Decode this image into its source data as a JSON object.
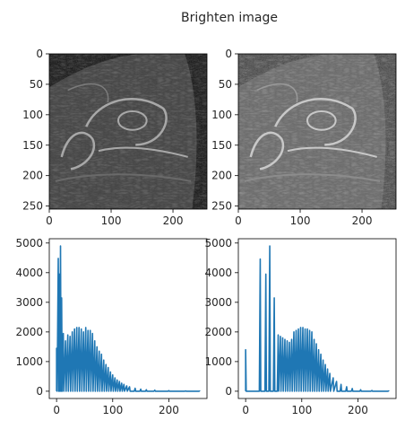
{
  "chart_data": [
    {
      "type": "image",
      "title": "Brighten image",
      "image_content": "grayscale MRI slice of an ankle (original)",
      "xticks": [
        0,
        100,
        200
      ],
      "yticks": [
        0,
        50,
        100,
        150,
        200,
        250
      ],
      "xlim": [
        0,
        255
      ],
      "ylim": [
        255,
        0
      ],
      "colormap": "gray"
    },
    {
      "type": "image",
      "image_content": "grayscale MRI slice of an ankle (brightened)",
      "xticks": [
        0,
        100,
        200
      ],
      "yticks": [
        0,
        50,
        100,
        150,
        200,
        250
      ],
      "xlim": [
        0,
        255
      ],
      "ylim": [
        255,
        0
      ],
      "colormap": "gray"
    },
    {
      "type": "line",
      "series_color": "#1f77b4",
      "xticks": [
        0,
        100,
        200
      ],
      "yticks": [
        0,
        1000,
        2000,
        3000,
        4000,
        5000
      ],
      "xlim": [
        -13,
        268
      ],
      "ylim": [
        -245,
        5145
      ],
      "peaks": [
        [
          0,
          1450
        ],
        [
          3,
          4480
        ],
        [
          5,
          3950
        ],
        [
          7,
          4900
        ],
        [
          9,
          3150
        ],
        [
          12,
          1950
        ],
        [
          16,
          1700
        ],
        [
          20,
          1900
        ],
        [
          24,
          1850
        ],
        [
          28,
          2000
        ],
        [
          32,
          2100
        ],
        [
          36,
          2150
        ],
        [
          40,
          2150
        ],
        [
          44,
          2100
        ],
        [
          48,
          2000
        ],
        [
          52,
          2150
        ],
        [
          56,
          2050
        ],
        [
          60,
          2050
        ],
        [
          64,
          1950
        ],
        [
          68,
          1700
        ],
        [
          72,
          1500
        ],
        [
          76,
          1350
        ],
        [
          80,
          1250
        ],
        [
          84,
          1050
        ],
        [
          88,
          900
        ],
        [
          92,
          800
        ],
        [
          96,
          650
        ],
        [
          100,
          550
        ],
        [
          104,
          450
        ],
        [
          108,
          380
        ],
        [
          112,
          330
        ],
        [
          116,
          270
        ],
        [
          120,
          230
        ],
        [
          125,
          180
        ],
        [
          130,
          150
        ],
        [
          140,
          100
        ],
        [
          150,
          70
        ],
        [
          160,
          50
        ],
        [
          175,
          35
        ],
        [
          200,
          20
        ],
        [
          230,
          10
        ],
        [
          255,
          5
        ]
      ]
    },
    {
      "type": "line",
      "series_color": "#1f77b4",
      "xticks": [
        0,
        100,
        200
      ],
      "yticks": [
        0,
        1000,
        2000,
        3000,
        4000,
        5000
      ],
      "xlim": [
        -13,
        268
      ],
      "ylim": [
        -245,
        5145
      ],
      "peaks": [
        [
          0,
          1400
        ],
        [
          26,
          4460
        ],
        [
          36,
          3950
        ],
        [
          43,
          4900
        ],
        [
          51,
          3150
        ],
        [
          58,
          1900
        ],
        [
          62,
          1850
        ],
        [
          66,
          1800
        ],
        [
          70,
          1750
        ],
        [
          74,
          1700
        ],
        [
          78,
          1650
        ],
        [
          82,
          1750
        ],
        [
          86,
          2000
        ],
        [
          90,
          2050
        ],
        [
          94,
          2100
        ],
        [
          98,
          2150
        ],
        [
          102,
          2150
        ],
        [
          106,
          2100
        ],
        [
          110,
          2100
        ],
        [
          114,
          2050
        ],
        [
          118,
          2000
        ],
        [
          122,
          1750
        ],
        [
          126,
          1600
        ],
        [
          130,
          1400
        ],
        [
          134,
          1250
        ],
        [
          138,
          1050
        ],
        [
          142,
          900
        ],
        [
          146,
          750
        ],
        [
          150,
          600
        ],
        [
          156,
          450
        ],
        [
          162,
          330
        ],
        [
          170,
          230
        ],
        [
          180,
          150
        ],
        [
          190,
          90
        ],
        [
          205,
          50
        ],
        [
          225,
          25
        ],
        [
          255,
          10
        ]
      ]
    }
  ]
}
